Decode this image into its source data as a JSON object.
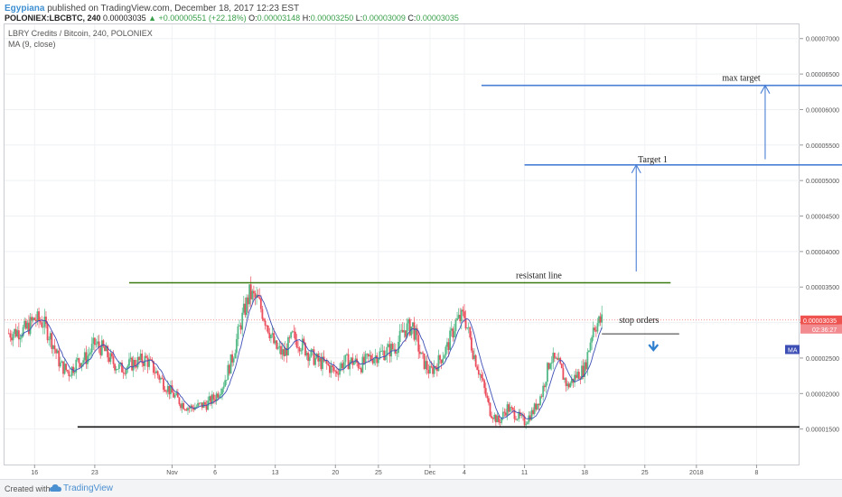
{
  "header": {
    "author": "Egypiana",
    "published": " published on TradingView.com, December 18, 2017 12:23 EST",
    "symbol": "POLONIEX:LBCBTC, 240",
    "price": "0.00003035",
    "change": "▲ +0.00000551 (+22.18%)",
    "o_label": "O:",
    "o_value": "0.00003148",
    "h_label": "H:",
    "h_value": "0.00003250",
    "l_label": "L:",
    "l_value": "0.00003009",
    "c_label": "C:",
    "c_value": "0.00003035"
  },
  "legend": {
    "series": "LBRY Credits / Bitcoin, 240, POLONIEX",
    "indicator": "MA (9, close)"
  },
  "footer": {
    "created_with": "Created with",
    "brand": "TradingView"
  },
  "chart_data": {
    "type": "candlestick",
    "ylim": [
      1e-05,
      7.2e-05
    ],
    "y_ticks": [
      "0.00007000",
      "0.00006500",
      "0.00006000",
      "0.00005500",
      "0.00005000",
      "0.00004500",
      "0.00004000",
      "0.00003500",
      "0.00003000",
      "0.00002500",
      "0.00002000",
      "0.00001500"
    ],
    "y_tick_values": [
      7e-05,
      6.5e-05,
      6e-05,
      5.5e-05,
      5e-05,
      4.5e-05,
      4e-05,
      3.5e-05,
      3e-05,
      2.5e-05,
      2e-05,
      1.5e-05
    ],
    "x_ticks": [
      "16",
      "23",
      "Nov",
      "6",
      "13",
      "20",
      "25",
      "Dec",
      "4",
      "11",
      "18",
      "25",
      "2018",
      "8"
    ],
    "x_tick_days": [
      -16,
      -9,
      0,
      5,
      12,
      19,
      24,
      30,
      34,
      41,
      48,
      55,
      61,
      68
    ],
    "last_price_label": "0.00003035",
    "countdown_label": "02:36:27",
    "ma_label": "MA",
    "colors": {
      "up": "#53b987",
      "down": "#eb4d5c",
      "ma": "#3d4fb5",
      "blue_line": "#4a7fd6",
      "green_line": "#3a7a10",
      "black_line": "#111111",
      "price_line": "#ef5350"
    },
    "close_path": [
      [
        -19,
        2.85e-05
      ],
      [
        -17,
        2.9e-05
      ],
      [
        -16,
        3.05e-05
      ],
      [
        -15,
        3e-05
      ],
      [
        -14,
        2.75e-05
      ],
      [
        -13,
        2.4e-05
      ],
      [
        -12,
        2.3e-05
      ],
      [
        -11,
        2.45e-05
      ],
      [
        -10,
        2.5e-05
      ],
      [
        -9,
        2.7e-05
      ],
      [
        -8,
        2.62e-05
      ],
      [
        -7,
        2.45e-05
      ],
      [
        -6,
        2.35e-05
      ],
      [
        -5,
        2.4e-05
      ],
      [
        -4,
        2.45e-05
      ],
      [
        -3,
        2.48e-05
      ],
      [
        -2,
        2.32e-05
      ],
      [
        -1,
        2.15e-05
      ],
      [
        0,
        2e-05
      ],
      [
        1,
        1.87e-05
      ],
      [
        2,
        1.8e-05
      ],
      [
        3,
        1.82e-05
      ],
      [
        4,
        1.85e-05
      ],
      [
        5,
        1.95e-05
      ],
      [
        6,
        2.15e-05
      ],
      [
        7,
        2.5e-05
      ],
      [
        8,
        3e-05
      ],
      [
        9,
        3.4e-05
      ],
      [
        10,
        3.3e-05
      ],
      [
        11,
        3e-05
      ],
      [
        12,
        2.65e-05
      ],
      [
        13,
        2.55e-05
      ],
      [
        14,
        2.8e-05
      ],
      [
        15,
        2.7e-05
      ],
      [
        16,
        2.55e-05
      ],
      [
        17,
        2.45e-05
      ],
      [
        18,
        2.4e-05
      ],
      [
        19,
        2.3e-05
      ],
      [
        20,
        2.45e-05
      ],
      [
        21,
        2.45e-05
      ],
      [
        22,
        2.4e-05
      ],
      [
        23,
        2.5e-05
      ],
      [
        24,
        2.55e-05
      ],
      [
        25,
        2.6e-05
      ],
      [
        26,
        2.65e-05
      ],
      [
        27,
        2.9e-05
      ],
      [
        28,
        2.95e-05
      ],
      [
        29,
        2.5e-05
      ],
      [
        30,
        2.3e-05
      ],
      [
        31,
        2.45e-05
      ],
      [
        32,
        2.65e-05
      ],
      [
        33,
        3e-05
      ],
      [
        34,
        3.1e-05
      ],
      [
        35,
        2.6e-05
      ],
      [
        36,
        2.2e-05
      ],
      [
        37,
        1.75e-05
      ],
      [
        38,
        1.6e-05
      ],
      [
        39,
        1.8e-05
      ],
      [
        40,
        1.7e-05
      ],
      [
        41,
        1.6e-05
      ],
      [
        42,
        1.75e-05
      ],
      [
        43,
        2e-05
      ],
      [
        44,
        2.5e-05
      ],
      [
        45,
        2.4e-05
      ],
      [
        46,
        2.1e-05
      ],
      [
        47,
        2.25e-05
      ],
      [
        48,
        2.35e-05
      ],
      [
        49,
        2.95e-05
      ],
      [
        50,
        3.03e-05
      ]
    ],
    "annotations": {
      "max_target": {
        "label": "max target",
        "price": 6.34e-05,
        "from_day": 36,
        "to_day": 78
      },
      "target1": {
        "label": "Target 1",
        "price": 5.22e-05,
        "from_day": 41,
        "to_day": 78
      },
      "resistant": {
        "label": "resistant line",
        "price": 3.56e-05,
        "from_day": -5,
        "to_day": 58
      },
      "support": {
        "price": 1.53e-05,
        "from_day": -11,
        "to_day": 73
      },
      "stop_orders": {
        "label": "stop orders",
        "price": 2.84e-05,
        "from_day": 50,
        "to_day": 59
      },
      "arrow_target1": {
        "day": 54,
        "from_price": 3.72e-05,
        "to_price": 5.22e-05
      },
      "arrow_max": {
        "day": 69,
        "from_price": 5.3e-05,
        "to_price": 6.34e-05
      },
      "down_arrow": {
        "day": 56,
        "price": 2.65e-05
      }
    }
  }
}
